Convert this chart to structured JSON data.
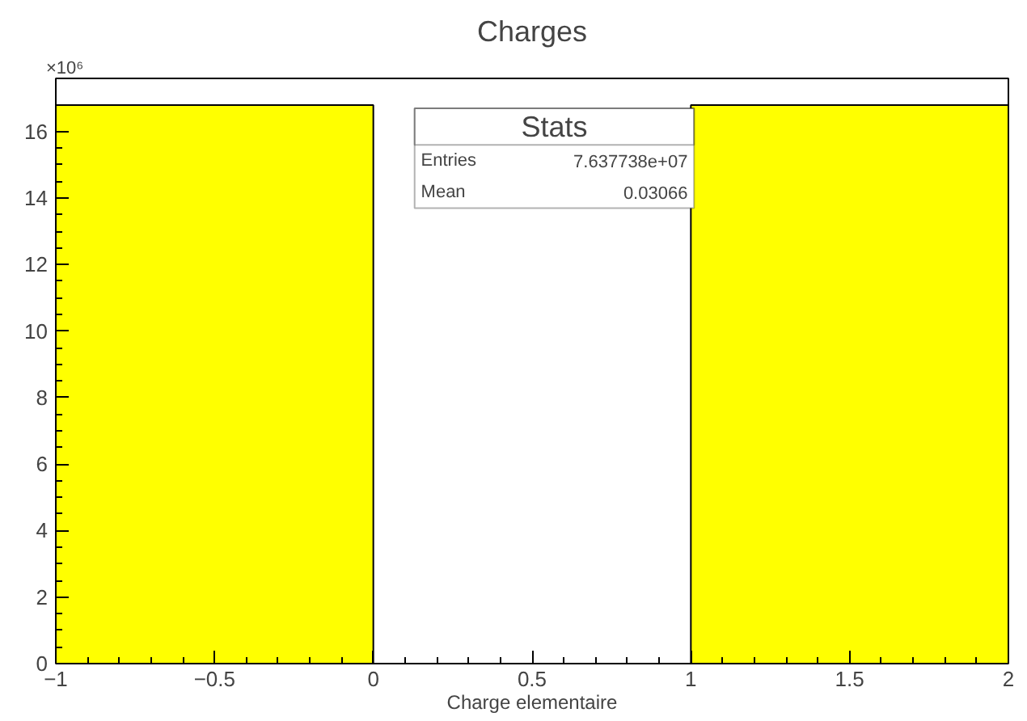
{
  "chart_data": {
    "type": "histogram",
    "title": "Charges",
    "xlabel": "Charge elementaire",
    "ylabel": "×10⁶",
    "bins": [
      -1,
      0,
      1,
      2
    ],
    "values": [
      16.8,
      0,
      16.8
    ],
    "color": "#ffff00",
    "xlim": [
      -1,
      2
    ],
    "xticks": [
      {
        "value": -1,
        "label": "−1"
      },
      {
        "value": -0.5,
        "label": "−0.5"
      },
      0,
      0.5,
      1,
      1.5,
      2
    ],
    "ylim": [
      0,
      17.6
    ],
    "yticks": [
      0,
      2,
      4,
      6,
      8,
      10,
      12,
      14,
      16
    ],
    "grid": false,
    "annotations": [
      "Stats",
      "Entries",
      "7.637738e+07",
      "Mean",
      "0.03066"
    ]
  }
}
